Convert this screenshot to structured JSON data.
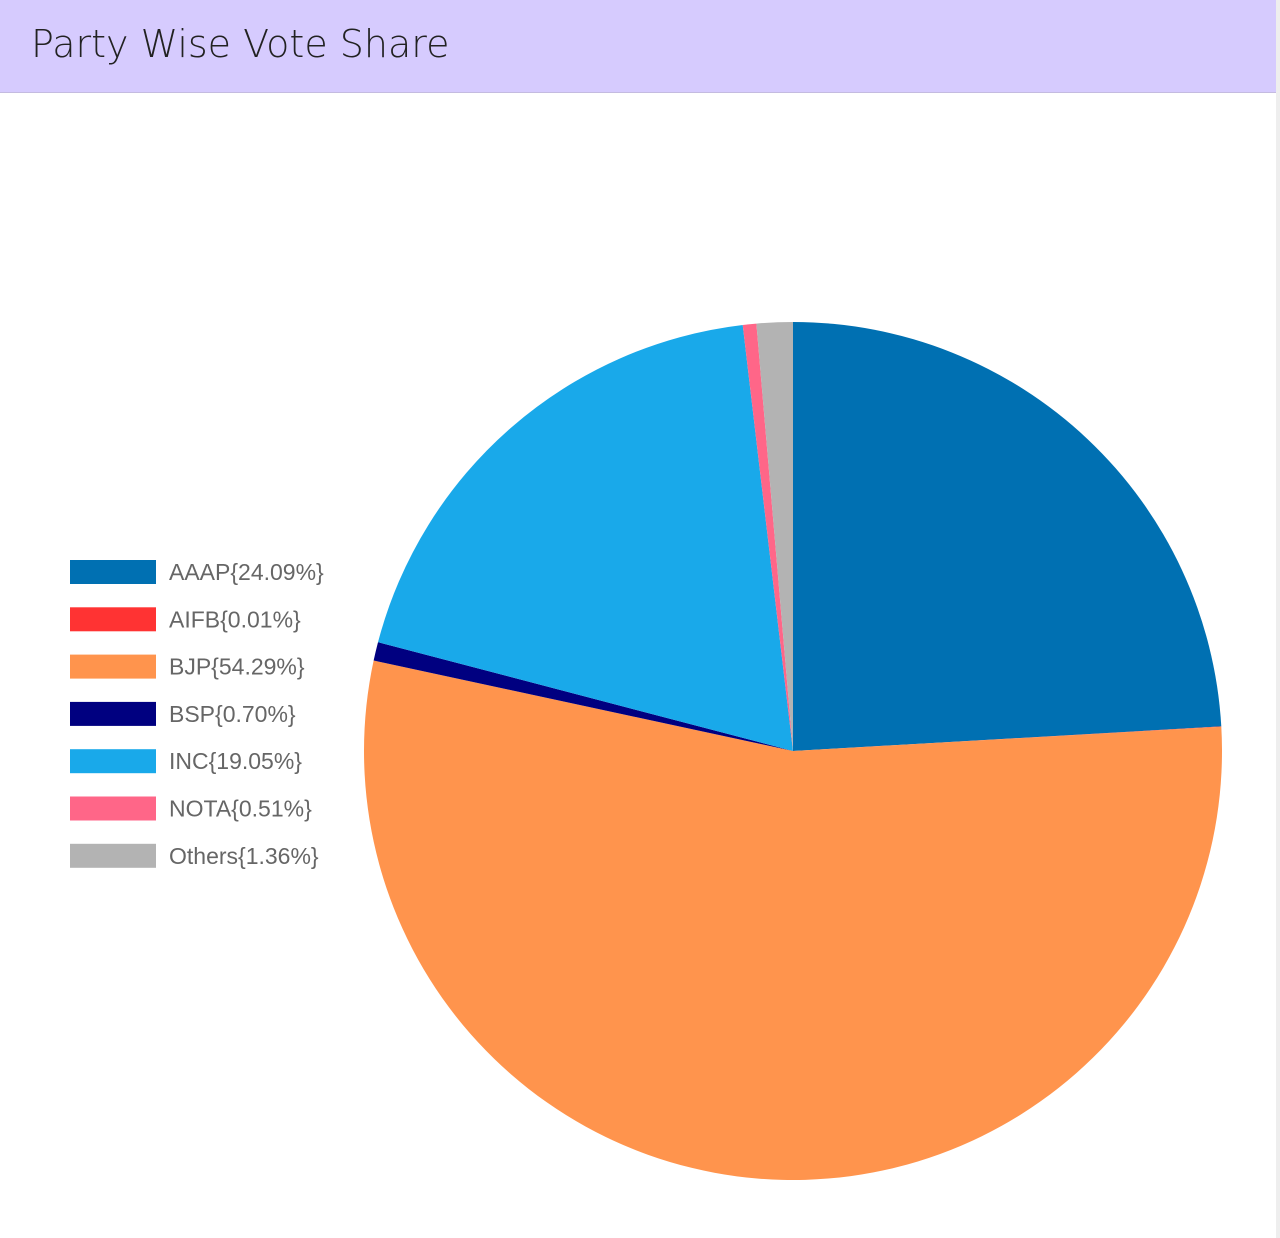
{
  "header": {
    "title": "Party Wise Vote Share"
  },
  "chart_data": {
    "type": "pie",
    "legend_position": "left",
    "start_angle": "top, clockwise",
    "slices": [
      {
        "label": "AAAP{24.09%}",
        "name": "AAAP",
        "value": 24.09,
        "color": "#0070b2"
      },
      {
        "label": "AIFB{0.01%}",
        "name": "AIFB",
        "value": 0.01,
        "color": "#ff3333"
      },
      {
        "label": "BJP{54.29%}",
        "name": "BJP",
        "value": 54.29,
        "color": "#ff944d"
      },
      {
        "label": "BSP{0.70%}",
        "name": "BSP",
        "value": 0.7,
        "color": "#000080"
      },
      {
        "label": "INC{19.05%}",
        "name": "INC",
        "value": 19.05,
        "color": "#19a9ea"
      },
      {
        "label": "NOTA{0.51%}",
        "name": "NOTA",
        "value": 0.51,
        "color": "#ff6688"
      },
      {
        "label": "Others{1.36%}",
        "name": "Others",
        "value": 1.36,
        "color": "#b3b3b3"
      }
    ]
  }
}
